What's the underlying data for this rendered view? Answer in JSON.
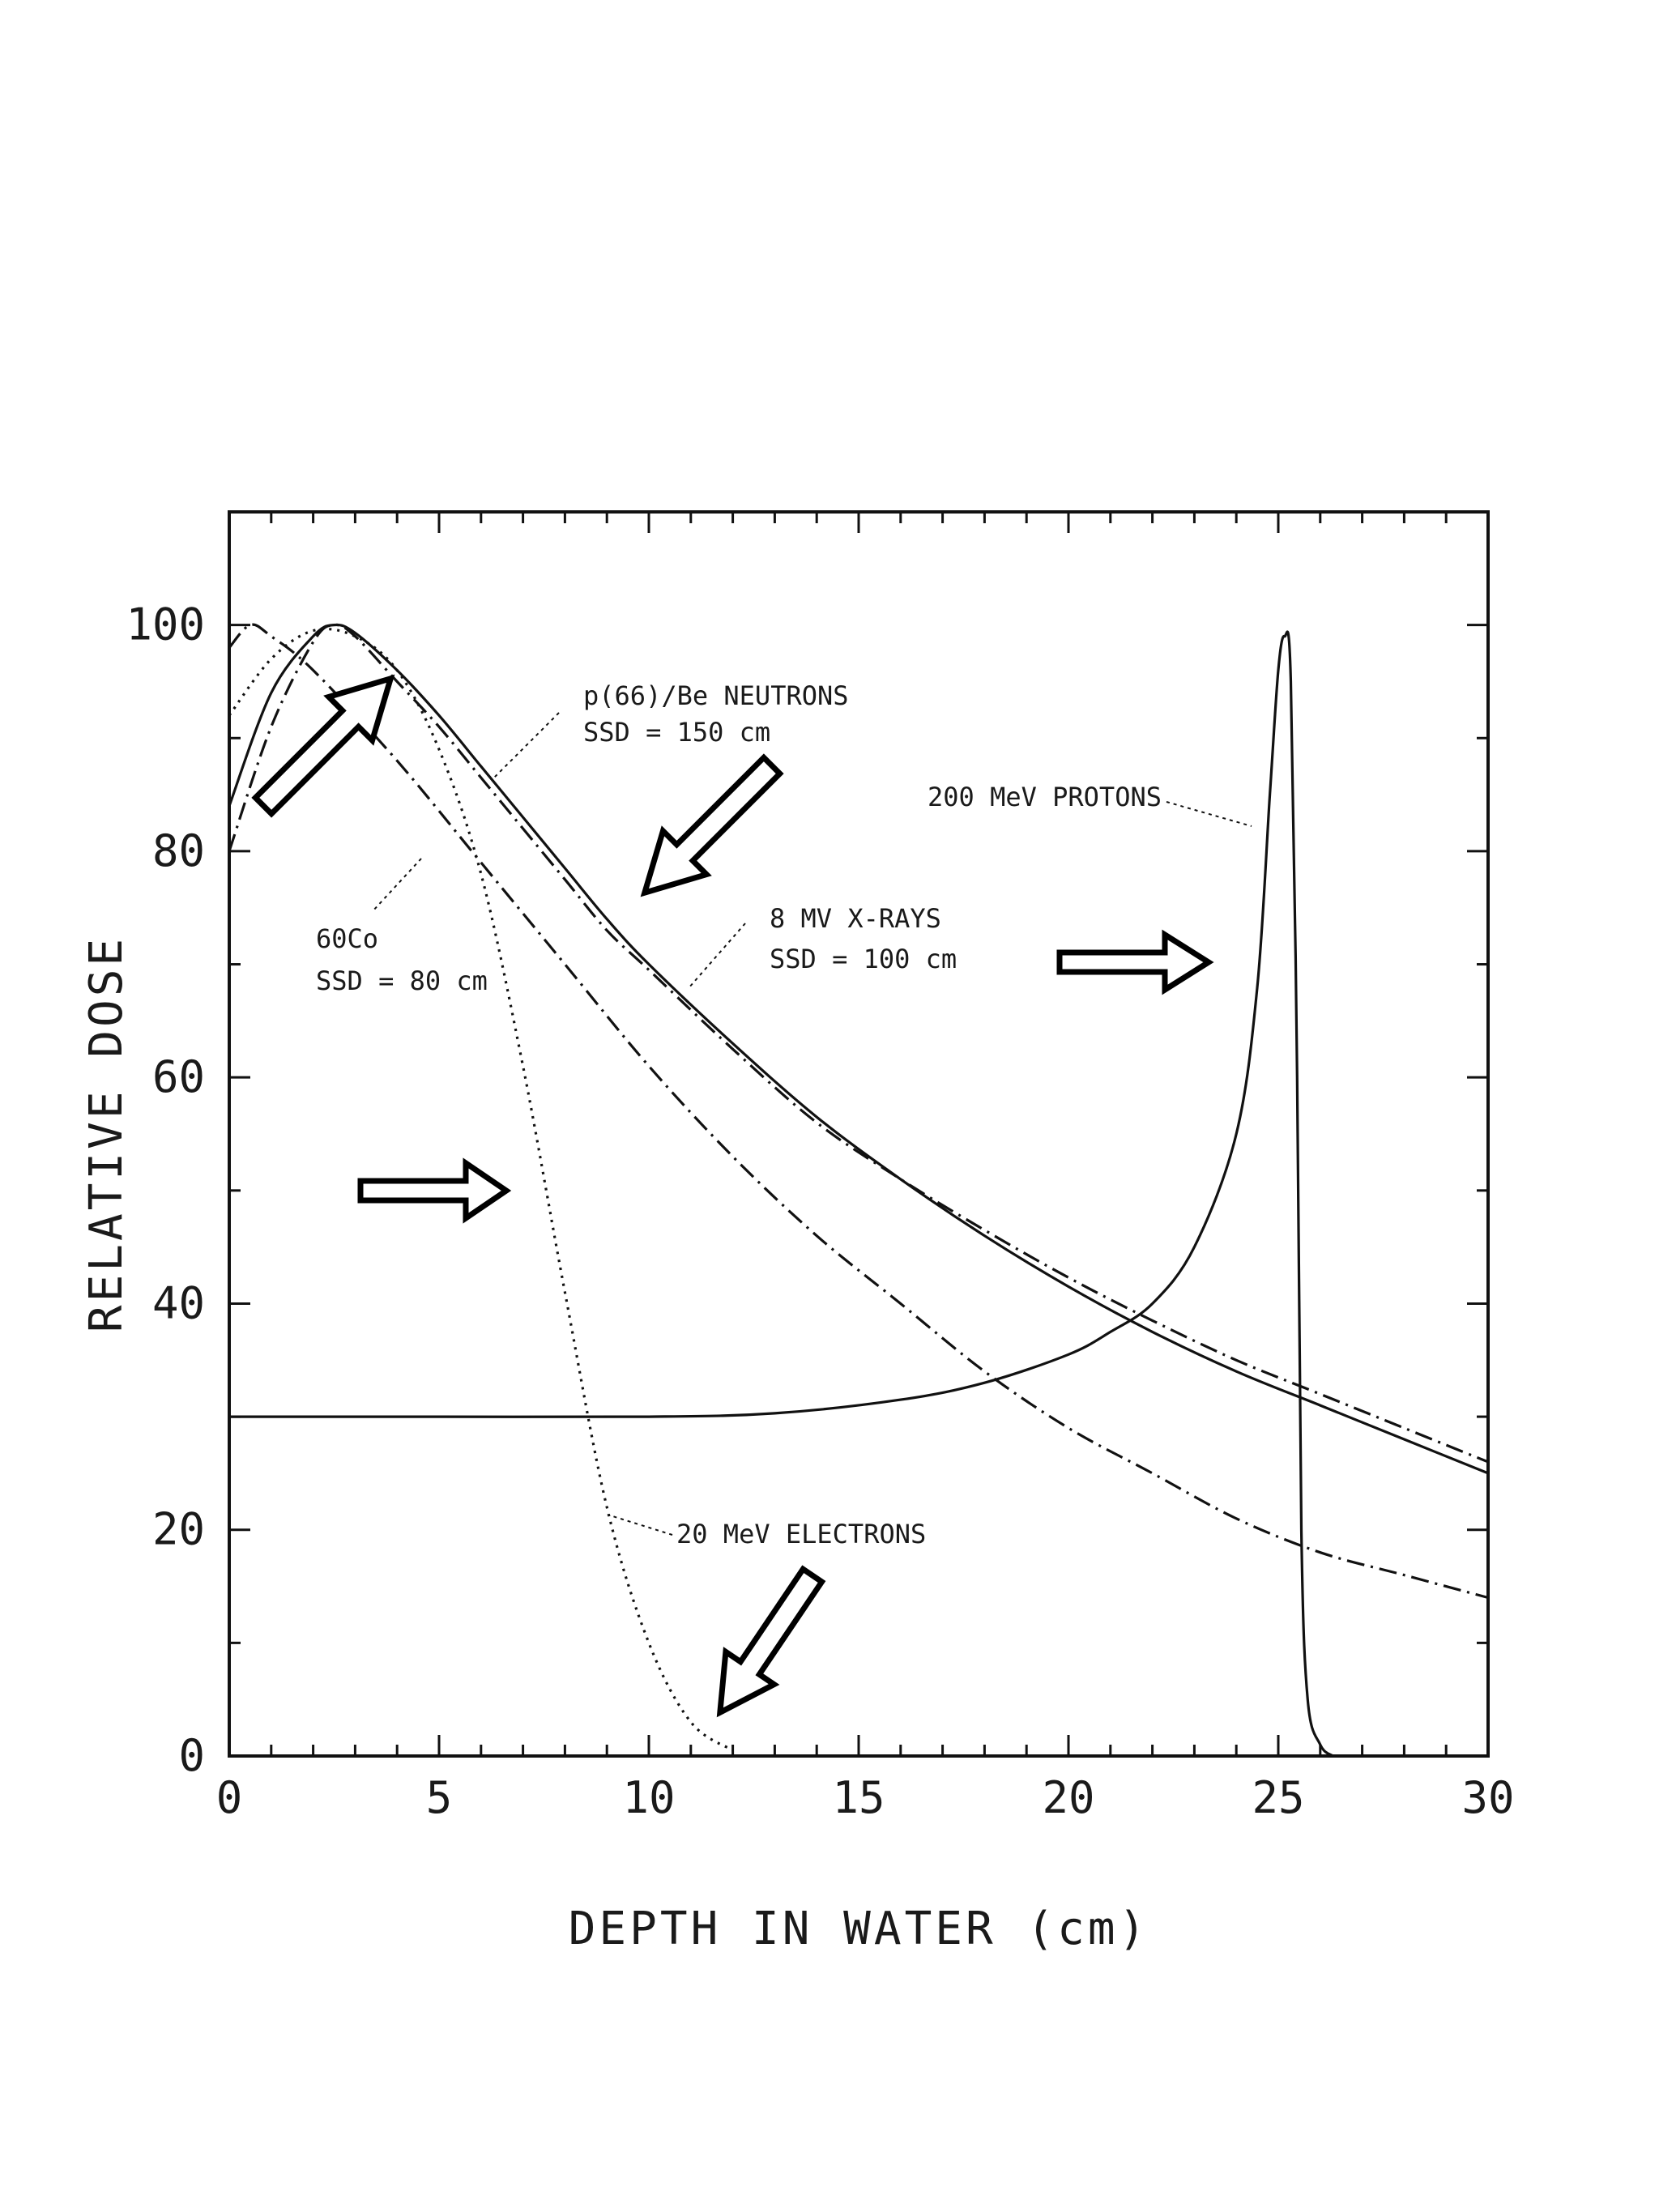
{
  "chart_data": {
    "type": "line",
    "title": "",
    "xlabel": "DEPTH IN WATER (cm)",
    "ylabel": "RELATIVE DOSE",
    "xlim": [
      0,
      30
    ],
    "ylim": [
      0,
      110
    ],
    "x_ticks": [
      "0",
      "5",
      "10",
      "15",
      "20",
      "25",
      "30"
    ],
    "y_ticks": [
      "0",
      "20",
      "40",
      "60",
      "80",
      "100"
    ],
    "grid": false,
    "legend": "none",
    "annotations": [
      {
        "id": "neutrons",
        "lines": [
          "p(66)/Be NEUTRONS",
          "SSD = 150 cm"
        ]
      },
      {
        "id": "protons",
        "lines": [
          "200 MeV PROTONS"
        ]
      },
      {
        "id": "xrays",
        "lines": [
          "8 MV X-RAYS",
          "SSD = 100 cm"
        ]
      },
      {
        "id": "cobalt",
        "lines": [
          "60Co",
          "SSD = 80 cm"
        ]
      },
      {
        "id": "electrons",
        "lines": [
          "20 MeV ELECTRONS"
        ]
      }
    ],
    "series": [
      {
        "id": "neutrons",
        "style": "solid",
        "points": [
          [
            0,
            84
          ],
          [
            1,
            94
          ],
          [
            2,
            99
          ],
          [
            2.5,
            100
          ],
          [
            3,
            99.3
          ],
          [
            4,
            96
          ],
          [
            5,
            92
          ],
          [
            6,
            87.5
          ],
          [
            7,
            83
          ],
          [
            8,
            78.5
          ],
          [
            9,
            74
          ],
          [
            10,
            70
          ],
          [
            12,
            63
          ],
          [
            14,
            56.5
          ],
          [
            16,
            51
          ],
          [
            18,
            46
          ],
          [
            20,
            41.5
          ],
          [
            22,
            37.5
          ],
          [
            24,
            34
          ],
          [
            26,
            31
          ],
          [
            28,
            28
          ],
          [
            30,
            25
          ]
        ]
      },
      {
        "id": "xrays",
        "style": "dashdot",
        "points": [
          [
            0,
            80
          ],
          [
            1,
            91
          ],
          [
            2,
            98.5
          ],
          [
            2.5,
            100
          ],
          [
            3,
            99
          ],
          [
            4,
            95
          ],
          [
            5,
            91
          ],
          [
            6,
            86.5
          ],
          [
            7,
            82
          ],
          [
            8,
            77.5
          ],
          [
            9,
            73
          ],
          [
            10,
            69.5
          ],
          [
            12,
            62.5
          ],
          [
            14,
            56
          ],
          [
            16,
            51
          ],
          [
            18,
            46.5
          ],
          [
            20,
            42.3
          ],
          [
            22,
            38.5
          ],
          [
            24,
            35
          ],
          [
            26,
            32
          ],
          [
            28,
            29
          ],
          [
            30,
            26
          ]
        ]
      },
      {
        "id": "cobalt",
        "style": "dashdot",
        "points": [
          [
            0,
            98
          ],
          [
            0.5,
            100
          ],
          [
            1,
            99
          ],
          [
            2,
            96
          ],
          [
            4,
            88
          ],
          [
            6,
            79
          ],
          [
            8,
            70
          ],
          [
            10,
            61
          ],
          [
            12,
            53
          ],
          [
            14,
            46
          ],
          [
            16,
            40
          ],
          [
            18,
            34
          ],
          [
            20,
            29
          ],
          [
            22,
            25
          ],
          [
            24,
            21
          ],
          [
            26,
            18
          ],
          [
            28,
            16
          ],
          [
            30,
            14
          ]
        ]
      },
      {
        "id": "electrons",
        "style": "dotted",
        "points": [
          [
            0,
            92
          ],
          [
            1,
            97
          ],
          [
            2,
            99.5
          ],
          [
            3,
            99
          ],
          [
            4,
            96
          ],
          [
            5,
            89
          ],
          [
            6,
            78
          ],
          [
            7,
            61
          ],
          [
            8,
            41
          ],
          [
            9,
            22
          ],
          [
            10,
            10
          ],
          [
            11,
            3
          ],
          [
            12,
            0.5
          ]
        ]
      },
      {
        "id": "protons",
        "style": "solid",
        "points": [
          [
            0,
            30
          ],
          [
            5,
            30
          ],
          [
            10,
            30
          ],
          [
            13,
            30.3
          ],
          [
            16,
            31.5
          ],
          [
            18,
            33
          ],
          [
            20,
            35.5
          ],
          [
            21,
            37.5
          ],
          [
            22,
            40
          ],
          [
            23,
            45
          ],
          [
            24,
            55
          ],
          [
            24.5,
            68
          ],
          [
            24.8,
            85
          ],
          [
            25,
            96
          ],
          [
            25.15,
            99
          ],
          [
            25.3,
            95
          ],
          [
            25.45,
            60
          ],
          [
            25.55,
            20
          ],
          [
            25.7,
            5
          ],
          [
            26,
            1
          ],
          [
            26.3,
            0
          ]
        ]
      }
    ]
  }
}
